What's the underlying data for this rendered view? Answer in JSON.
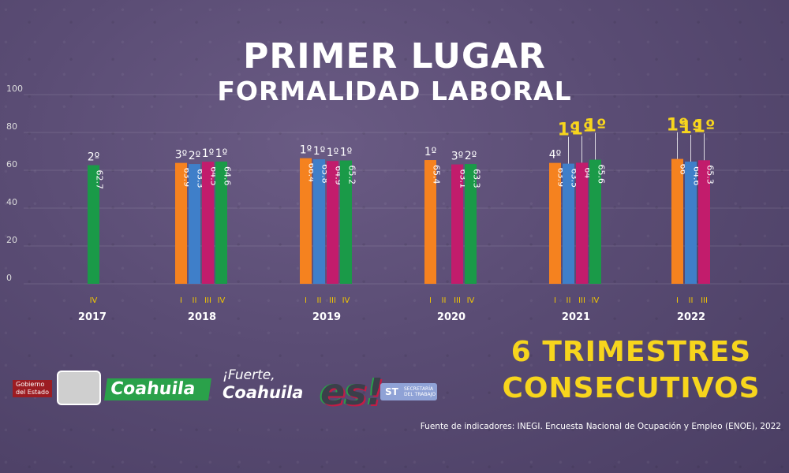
{
  "header": {
    "title": "PRIMER LUGAR",
    "subtitle": "FORMALIDAD LABORAL"
  },
  "callout": {
    "line1": "6 TRIMESTRES",
    "line2": "CONSECUTIVOS"
  },
  "source": "Fuente de indicadores: INEGI. Encuesta Nacional de Ocupación y Empleo (ENOE), 2022",
  "logos": {
    "gobierno": "Gobierno del Estado",
    "coahuila": "Coahuila",
    "fuerte": "¡Fuerte,",
    "fuerte_coahuila": "Coahuila",
    "es": "es!",
    "st": "ST",
    "st_text": "SECRETARÍA DEL TRABAJO"
  },
  "colors": {
    "I": "#f5821f",
    "II": "#3f7fc9",
    "III": "#c21c6c",
    "IV": "#1a9a48",
    "highlight": "#f7d51d"
  },
  "chart_data": {
    "type": "bar",
    "ylim": [
      0,
      100
    ],
    "yticks": [
      0,
      20,
      40,
      60,
      80,
      100
    ],
    "groups": [
      {
        "year": "2017",
        "bars": [
          {
            "quarter": "IV",
            "value": 62.7,
            "label": "62.7",
            "rank": "2º",
            "highlight": false
          }
        ]
      },
      {
        "year": "2018",
        "bars": [
          {
            "quarter": "I",
            "value": 63.9,
            "label": "63.9",
            "rank": "3º",
            "highlight": false
          },
          {
            "quarter": "II",
            "value": 63.3,
            "label": "63.3",
            "rank": "2º",
            "highlight": false
          },
          {
            "quarter": "III",
            "value": 64.5,
            "label": "64.5",
            "rank": "1º",
            "highlight": false
          },
          {
            "quarter": "IV",
            "value": 64.6,
            "label": "64.6",
            "rank": "1º",
            "highlight": false
          }
        ]
      },
      {
        "year": "2019",
        "bars": [
          {
            "quarter": "I",
            "value": 66.4,
            "label": "66.4",
            "rank": "1º",
            "highlight": false
          },
          {
            "quarter": "II",
            "value": 65.8,
            "label": "65.8",
            "rank": "1º",
            "highlight": false
          },
          {
            "quarter": "III",
            "value": 64.9,
            "label": "64.9",
            "rank": "1º",
            "highlight": false
          },
          {
            "quarter": "IV",
            "value": 65.2,
            "label": "65.2",
            "rank": "1º",
            "highlight": false
          }
        ]
      },
      {
        "year": "2020",
        "bars": [
          {
            "quarter": "I",
            "value": 65.4,
            "label": "65.4",
            "rank": "1º",
            "highlight": false
          },
          {
            "quarter": "II",
            "value": null,
            "label": "",
            "rank": "",
            "highlight": false
          },
          {
            "quarter": "III",
            "value": 63.1,
            "label": "63.1",
            "rank": "3º",
            "highlight": false
          },
          {
            "quarter": "IV",
            "value": 63.3,
            "label": "63.3",
            "rank": "2º",
            "highlight": false
          }
        ]
      },
      {
        "year": "2021",
        "bars": [
          {
            "quarter": "I",
            "value": 63.9,
            "label": "63.9",
            "rank": "4º",
            "highlight": false
          },
          {
            "quarter": "II",
            "value": 63.5,
            "label": "63.5",
            "rank": "1º",
            "highlight": true
          },
          {
            "quarter": "III",
            "value": 64,
            "label": "64",
            "rank": "1º",
            "highlight": true
          },
          {
            "quarter": "IV",
            "value": 65.6,
            "label": "65.6",
            "rank": "1º",
            "highlight": true
          }
        ]
      },
      {
        "year": "2022",
        "bars": [
          {
            "quarter": "I",
            "value": 66,
            "label": "66",
            "rank": "1º",
            "highlight": true
          },
          {
            "quarter": "II",
            "value": 64.6,
            "label": "64.6",
            "rank": "1º",
            "highlight": true
          },
          {
            "quarter": "III",
            "value": 65.3,
            "label": "65.3",
            "rank": "1º",
            "highlight": true
          }
        ]
      }
    ]
  }
}
